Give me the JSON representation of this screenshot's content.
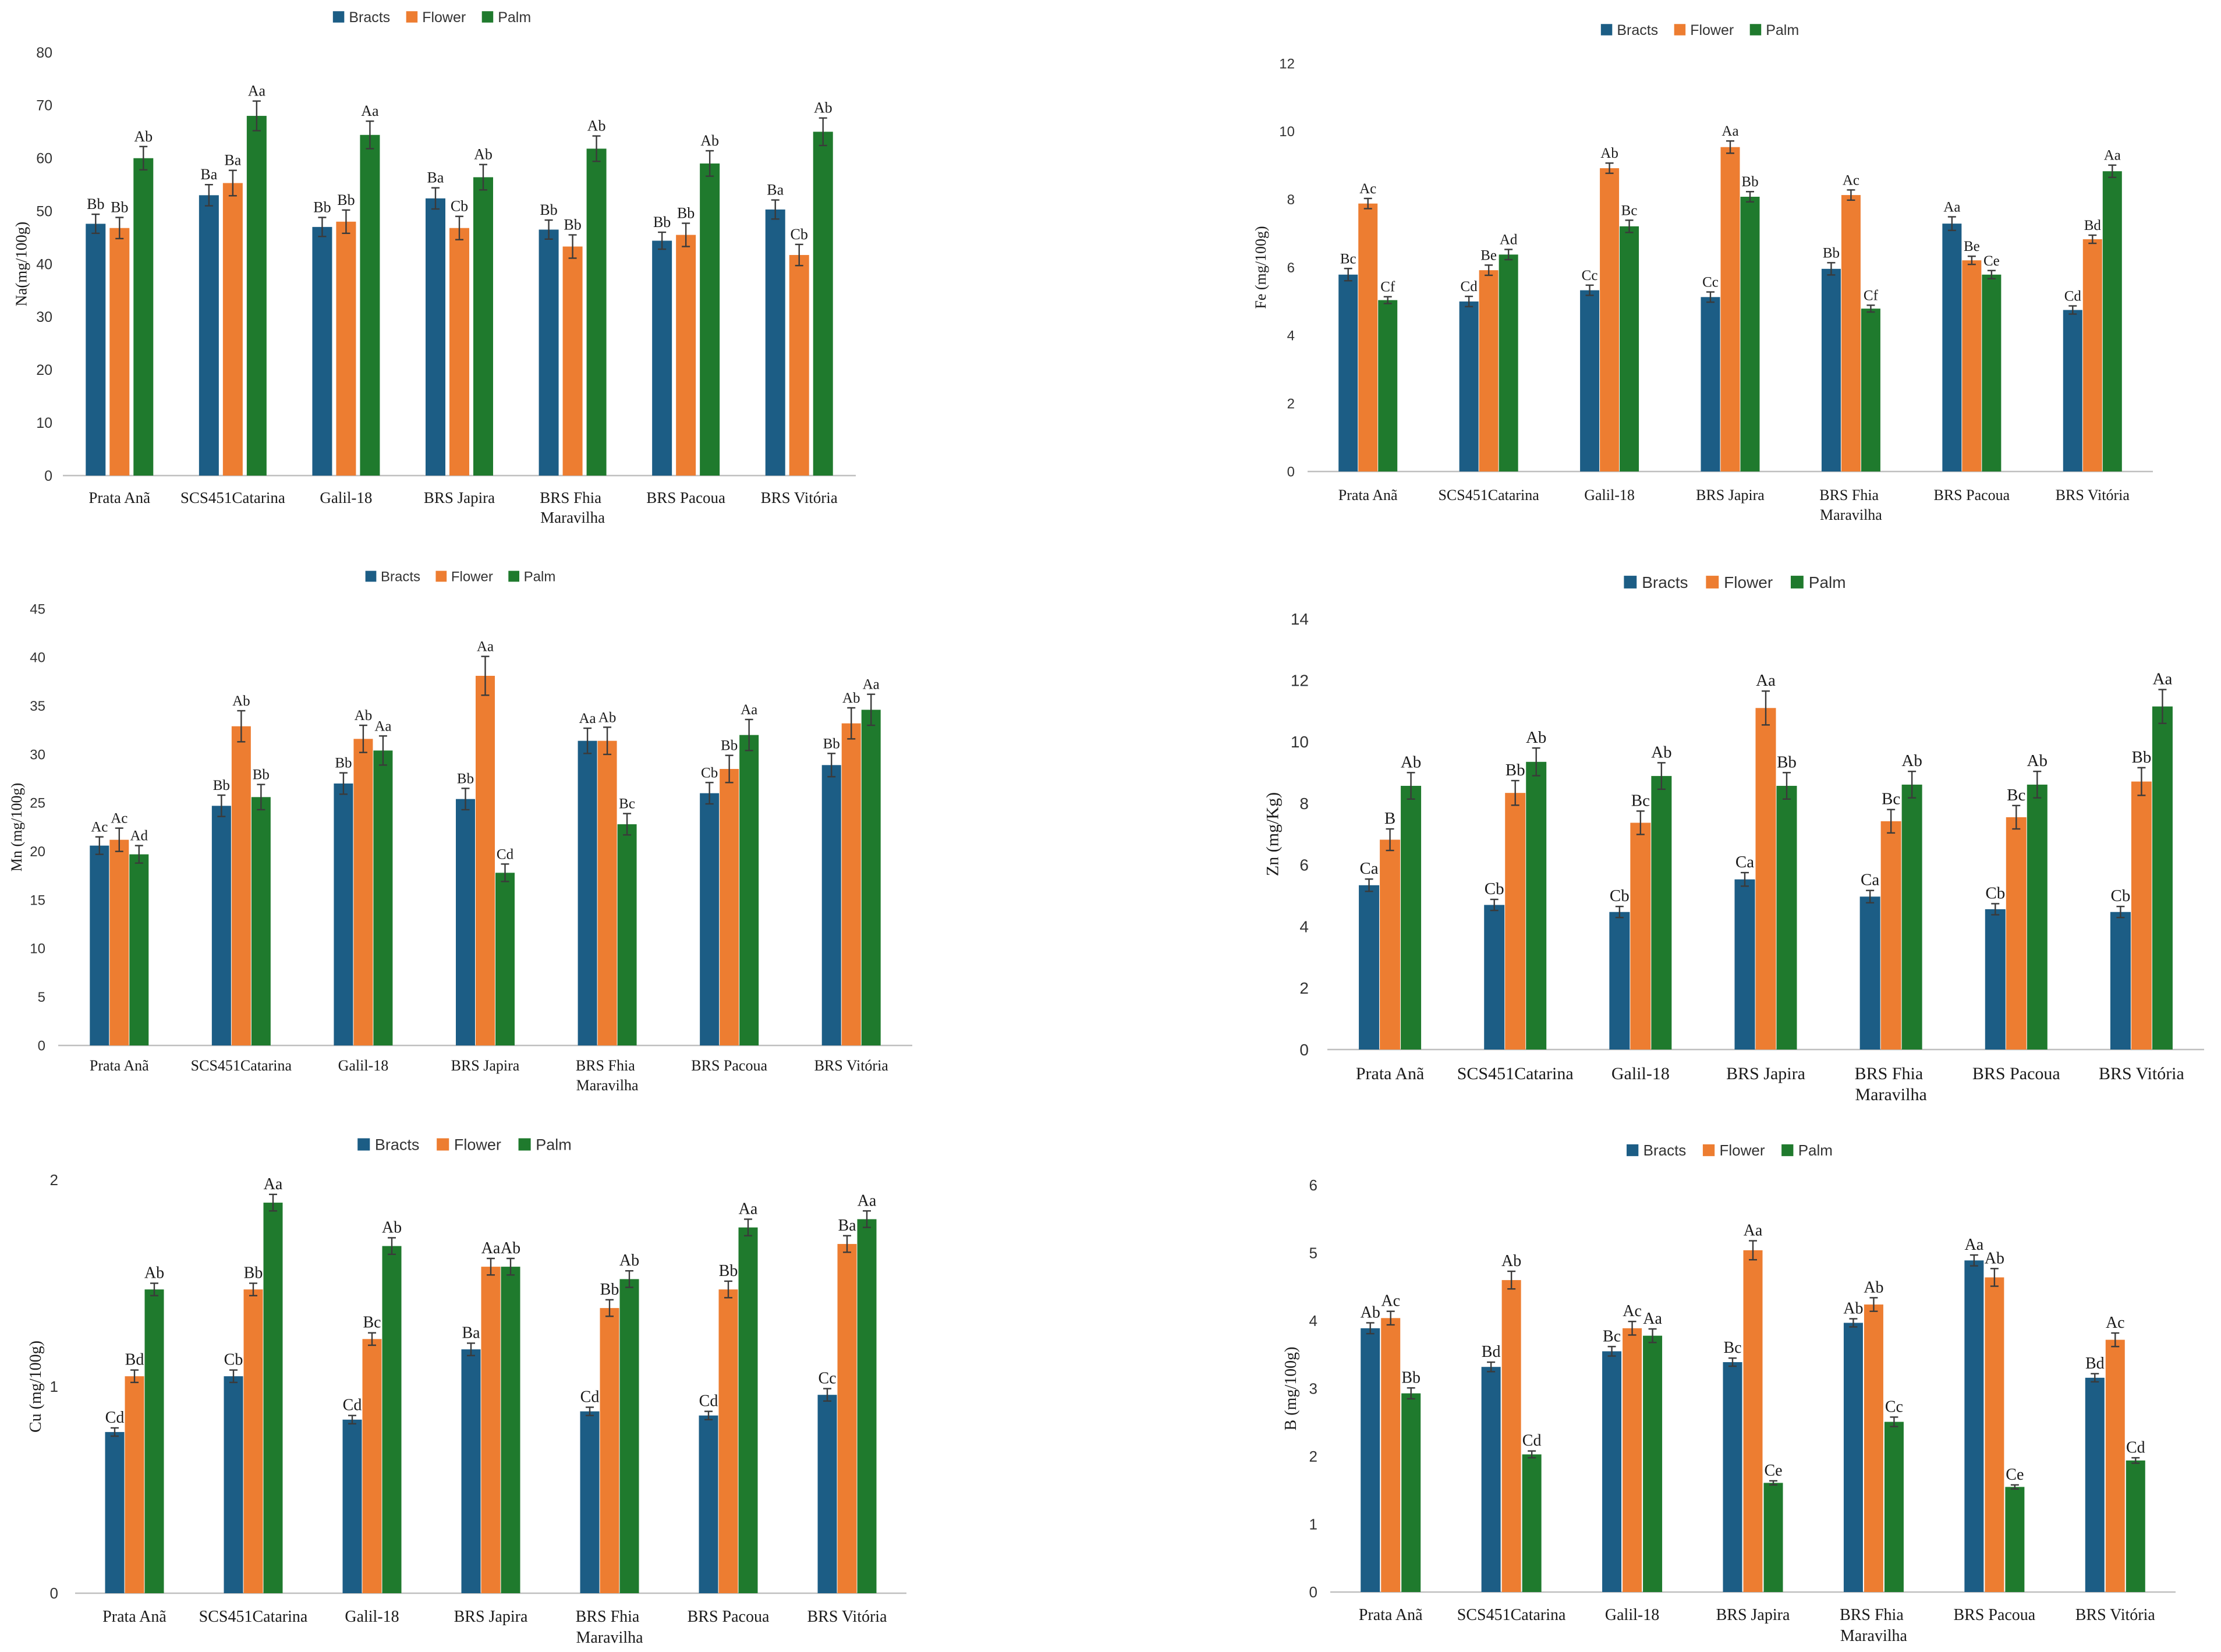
{
  "chart_data": [
    {
      "type": "bar",
      "title": "",
      "xlabel": "",
      "ylabel": "Na(mg/100g)",
      "ylim": [
        0,
        80
      ],
      "yticks": [
        0,
        10,
        20,
        30,
        40,
        50,
        60,
        70,
        80
      ],
      "grid": false,
      "legend": "top-center",
      "categories": [
        "Prata Anã",
        "SCS451Catarina",
        "Galil-18",
        "BRS Japira",
        "BRS Fhia Maravilha",
        "BRS Pacoua",
        "BRS Vitória"
      ],
      "series": [
        {
          "name": "Bracts",
          "color": "#1c5d85",
          "values": [
            47.6,
            53.0,
            47.0,
            52.4,
            46.5,
            44.4,
            50.3
          ],
          "errors": [
            1.8,
            2.0,
            1.8,
            2.0,
            1.8,
            1.6,
            1.8
          ],
          "labels": [
            "Bb",
            "Ba",
            "Bb",
            "Ba",
            "Bb",
            "Bb",
            "Ba"
          ]
        },
        {
          "name": "Flower",
          "color": "#ed7d31",
          "values": [
            46.8,
            55.3,
            48.0,
            46.8,
            43.3,
            45.5,
            41.7
          ],
          "errors": [
            2.0,
            2.4,
            2.2,
            2.2,
            2.2,
            2.2,
            2.0
          ],
          "labels": [
            "Bb",
            "Ba",
            "Bb",
            "Cb",
            "Bb",
            "Bb",
            "Cb"
          ]
        },
        {
          "name": "Palm",
          "color": "#1f7a2d",
          "values": [
            60.0,
            68.0,
            64.4,
            56.4,
            61.8,
            59.0,
            65.0
          ],
          "errors": [
            2.2,
            2.8,
            2.6,
            2.4,
            2.4,
            2.4,
            2.6
          ],
          "labels": [
            "Ab",
            "Aa",
            "Aa",
            "Ab",
            "Ab",
            "Ab",
            "Ab"
          ]
        }
      ]
    },
    {
      "type": "bar",
      "title": "",
      "xlabel": "",
      "ylabel": "Fe (mg/100g)",
      "ylim": [
        0,
        12
      ],
      "yticks": [
        0,
        2,
        4,
        6,
        8,
        10,
        12
      ],
      "grid": false,
      "legend": "top-center",
      "categories": [
        "Prata Anã",
        "SCS451Catarina",
        "Galil-18",
        "BRS Japira",
        "BRS Fhia Maravilha",
        "BRS Pacoua",
        "BRS Vitória"
      ],
      "series": [
        {
          "name": "Bracts",
          "color": "#1c5d85",
          "values": [
            5.79,
            5.0,
            5.33,
            5.13,
            5.96,
            7.29,
            4.75
          ],
          "errors": [
            0.18,
            0.15,
            0.15,
            0.15,
            0.18,
            0.2,
            0.12
          ],
          "labels": [
            "Bc",
            "Cd",
            "Cc",
            "Cc",
            "Bb",
            "Aa",
            "Cd"
          ]
        },
        {
          "name": "Flower",
          "color": "#ed7d31",
          "values": [
            7.88,
            5.92,
            8.92,
            9.54,
            8.13,
            6.21,
            6.83
          ],
          "errors": [
            0.15,
            0.15,
            0.15,
            0.18,
            0.15,
            0.12,
            0.12
          ],
          "labels": [
            "Ac",
            "Be",
            "Ab",
            "Aa",
            "Ac",
            "Be",
            "Bd"
          ]
        },
        {
          "name": "Palm",
          "color": "#1f7a2d",
          "values": [
            5.04,
            6.38,
            7.21,
            8.08,
            4.79,
            5.79,
            8.83
          ],
          "errors": [
            0.1,
            0.15,
            0.18,
            0.15,
            0.1,
            0.12,
            0.18
          ],
          "labels": [
            "Cf",
            "Ad",
            "Bc",
            "Bb",
            "Cf",
            "Ce",
            "Aa"
          ]
        }
      ]
    },
    {
      "type": "bar",
      "title": "",
      "xlabel": "",
      "ylabel": "Mn (mg/100g)",
      "ylim": [
        0,
        45
      ],
      "yticks": [
        0,
        5,
        10,
        15,
        20,
        25,
        30,
        35,
        40,
        45
      ],
      "grid": false,
      "legend": "top-center",
      "categories": [
        "Prata Anã",
        "SCS451Catarina",
        "Galil-18",
        "BRS Japira",
        "BRS Fhia Maravilha",
        "BRS Pacoua",
        "BRS Vitória"
      ],
      "series": [
        {
          "name": "Bracts",
          "color": "#1c5d85",
          "values": [
            20.6,
            24.7,
            27.0,
            25.4,
            31.4,
            26.0,
            28.9
          ],
          "errors": [
            0.9,
            1.1,
            1.1,
            1.1,
            1.3,
            1.1,
            1.2
          ],
          "labels": [
            "Ac",
            "Bb",
            "Bb",
            "Bb",
            "Aa",
            "Cb",
            "Bb"
          ]
        },
        {
          "name": "Flower",
          "color": "#ed7d31",
          "values": [
            21.2,
            32.9,
            31.6,
            38.1,
            31.4,
            28.5,
            33.2
          ],
          "errors": [
            1.2,
            1.6,
            1.4,
            2.0,
            1.4,
            1.4,
            1.6
          ],
          "labels": [
            "Ac",
            "Ab",
            "Ab",
            "Aa",
            "Ab",
            "Bb",
            "Ab"
          ]
        },
        {
          "name": "Palm",
          "color": "#1f7a2d",
          "values": [
            19.7,
            25.6,
            30.4,
            17.8,
            22.8,
            32.0,
            34.6
          ],
          "errors": [
            0.9,
            1.3,
            1.5,
            0.9,
            1.1,
            1.6,
            1.6
          ],
          "labels": [
            "Ad",
            "Bb",
            "Aa",
            "Cd",
            "Bc",
            "Aa",
            "Aa"
          ]
        }
      ]
    },
    {
      "type": "bar",
      "title": "",
      "xlabel": "",
      "ylabel": "Zn (mg/Kg)",
      "ylim": [
        0,
        14
      ],
      "yticks": [
        0,
        2,
        4,
        6,
        8,
        10,
        12,
        14
      ],
      "grid": false,
      "legend": "top-center",
      "categories": [
        "Prata Anã",
        "SCS451Catarina",
        "Galil-18",
        "BRS Japira",
        "BRS Fhia Maravilha",
        "BRS Pacoua",
        "BRS Vitória"
      ],
      "series": [
        {
          "name": "Bracts",
          "color": "#1c5d85",
          "values": [
            5.34,
            4.7,
            4.47,
            5.53,
            4.97,
            4.56,
            4.47
          ],
          "errors": [
            0.2,
            0.18,
            0.18,
            0.22,
            0.2,
            0.18,
            0.18
          ],
          "labels": [
            "Ca",
            "Cb",
            "Cb",
            "Ca",
            "Ca",
            "Cb",
            "Cb"
          ]
        },
        {
          "name": "Flower",
          "color": "#ed7d31",
          "values": [
            6.82,
            8.34,
            7.37,
            11.1,
            7.42,
            7.55,
            8.71
          ],
          "errors": [
            0.35,
            0.4,
            0.38,
            0.55,
            0.38,
            0.38,
            0.45
          ],
          "labels": [
            "B",
            "Bb",
            "Bc",
            "Aa",
            "Bc",
            "Bc",
            "Bb"
          ]
        },
        {
          "name": "Palm",
          "color": "#1f7a2d",
          "values": [
            8.57,
            9.35,
            8.89,
            8.57,
            8.61,
            8.61,
            11.15
          ],
          "errors": [
            0.43,
            0.45,
            0.43,
            0.43,
            0.43,
            0.43,
            0.55
          ],
          "labels": [
            "Ab",
            "Ab",
            "Ab",
            "Bb",
            "Ab",
            "Ab",
            "Aa"
          ]
        }
      ]
    },
    {
      "type": "bar",
      "title": "",
      "xlabel": "",
      "ylabel": "Cu (mg/100g)",
      "ylim": [
        0,
        2
      ],
      "yticks": [
        0,
        1,
        2
      ],
      "grid": false,
      "legend": "top-center",
      "categories": [
        "Prata Anã",
        "SCS451Catarina",
        "Galil-18",
        "BRS Japira",
        "BRS Fhia Maravilha",
        "BRS Pacoua",
        "BRS Vitória"
      ],
      "series": [
        {
          "name": "Bracts",
          "color": "#1c5d85",
          "values": [
            0.78,
            1.05,
            0.84,
            1.18,
            0.88,
            0.86,
            0.96
          ],
          "errors": [
            0.02,
            0.03,
            0.02,
            0.03,
            0.02,
            0.02,
            0.03
          ],
          "labels": [
            "Cd",
            "Cb",
            "Cd",
            "Ba",
            "Cd",
            "Cd",
            "Cc"
          ]
        },
        {
          "name": "Flower",
          "color": "#ed7d31",
          "values": [
            1.05,
            1.47,
            1.23,
            1.58,
            1.38,
            1.47,
            1.69
          ],
          "errors": [
            0.03,
            0.03,
            0.03,
            0.04,
            0.04,
            0.04,
            0.04
          ],
          "labels": [
            "Bd",
            "Bb",
            "Bc",
            "Aa",
            "Bb",
            "Bb",
            "Ba"
          ]
        },
        {
          "name": "Palm",
          "color": "#1f7a2d",
          "values": [
            1.47,
            1.89,
            1.68,
            1.58,
            1.52,
            1.77,
            1.81
          ],
          "errors": [
            0.03,
            0.04,
            0.04,
            0.04,
            0.04,
            0.04,
            0.04
          ],
          "labels": [
            "Ab",
            "Aa",
            "Ab",
            "Ab",
            "Ab",
            "Aa",
            "Aa"
          ]
        }
      ]
    },
    {
      "type": "bar",
      "title": "",
      "xlabel": "",
      "ylabel": "B (mg/100g)",
      "ylim": [
        0,
        6
      ],
      "yticks": [
        0,
        1,
        2,
        3,
        4,
        5,
        6
      ],
      "grid": false,
      "legend": "top-center",
      "categories": [
        "Prata Anã",
        "SCS451Catarina",
        "Galil-18",
        "BRS Japira",
        "BRS Fhia Maravilha",
        "BRS Pacoua",
        "BRS Vitória"
      ],
      "series": [
        {
          "name": "Bracts",
          "color": "#1c5d85",
          "values": [
            3.89,
            3.32,
            3.55,
            3.39,
            3.97,
            4.89,
            3.16
          ],
          "errors": [
            0.08,
            0.07,
            0.07,
            0.06,
            0.06,
            0.08,
            0.06
          ],
          "labels": [
            "Ab",
            "Bd",
            "Bc",
            "Bc",
            "Ab",
            "Aa",
            "Bd"
          ]
        },
        {
          "name": "Flower",
          "color": "#ed7d31",
          "values": [
            4.04,
            4.6,
            3.89,
            5.04,
            4.24,
            4.64,
            3.72
          ],
          "errors": [
            0.1,
            0.13,
            0.1,
            0.14,
            0.1,
            0.13,
            0.1
          ],
          "labels": [
            "Ac",
            "Ab",
            "Ac",
            "Aa",
            "Ab",
            "Ab",
            "Ac"
          ]
        },
        {
          "name": "Palm",
          "color": "#1f7a2d",
          "values": [
            2.93,
            2.03,
            3.78,
            1.61,
            2.51,
            1.55,
            1.94
          ],
          "errors": [
            0.08,
            0.05,
            0.1,
            0.03,
            0.07,
            0.03,
            0.04
          ],
          "labels": [
            "Bb",
            "Cd",
            "Aa",
            "Ce",
            "Cc",
            "Ce",
            "Cd"
          ]
        }
      ]
    }
  ]
}
